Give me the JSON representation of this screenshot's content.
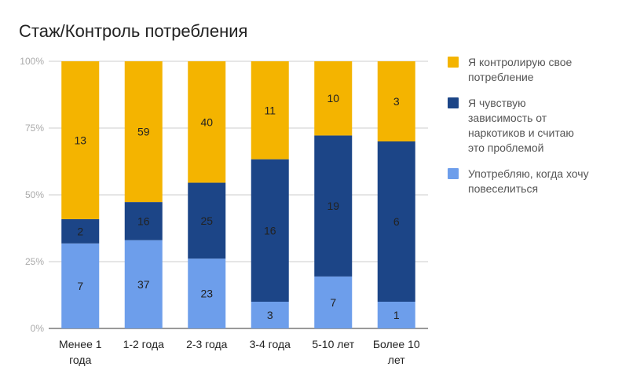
{
  "chart_data": {
    "type": "bar",
    "stacked": "percent",
    "title": "Стаж/Контроль потребления",
    "categories": [
      "Менее 1 года",
      "1-2 года",
      "2-3 года",
      "3-4 года",
      "5-10 лет",
      "Более 10 лет"
    ],
    "category_lines": [
      [
        "Менее 1",
        "года"
      ],
      [
        "1-2 года"
      ],
      [
        "2-3 года"
      ],
      [
        "3-4 года"
      ],
      [
        "5-10 лет"
      ],
      [
        "Более 10",
        "лет"
      ]
    ],
    "series": [
      {
        "name": "Употребляю, когда хочу повеселиться",
        "color": "#6D9EEB",
        "values": [
          7,
          37,
          23,
          3,
          7,
          1
        ]
      },
      {
        "name": "Я чувствую зависимость от наркотиков и считаю это проблемой",
        "color": "#1C4587",
        "values": [
          2,
          16,
          25,
          16,
          19,
          6
        ]
      },
      {
        "name": "Я контролирую свое потребление",
        "color": "#F4B400",
        "values": [
          13,
          59,
          40,
          11,
          10,
          3
        ]
      }
    ],
    "yticks": [
      "0%",
      "25%",
      "50%",
      "75%",
      "100%"
    ],
    "ylim": [
      0,
      100
    ],
    "grid": true,
    "legend_position": "right",
    "legend": [
      {
        "lines": [
          "Я контролирую свое",
          "потребление"
        ],
        "color": "#F4B400"
      },
      {
        "lines": [
          "Я чувствую",
          "зависимость от",
          "наркотиков и считаю",
          "это проблемой"
        ],
        "color": "#1C4587"
      },
      {
        "lines": [
          "Употребляю, когда хочу",
          "повеселиться"
        ],
        "color": "#6D9EEB"
      }
    ]
  }
}
